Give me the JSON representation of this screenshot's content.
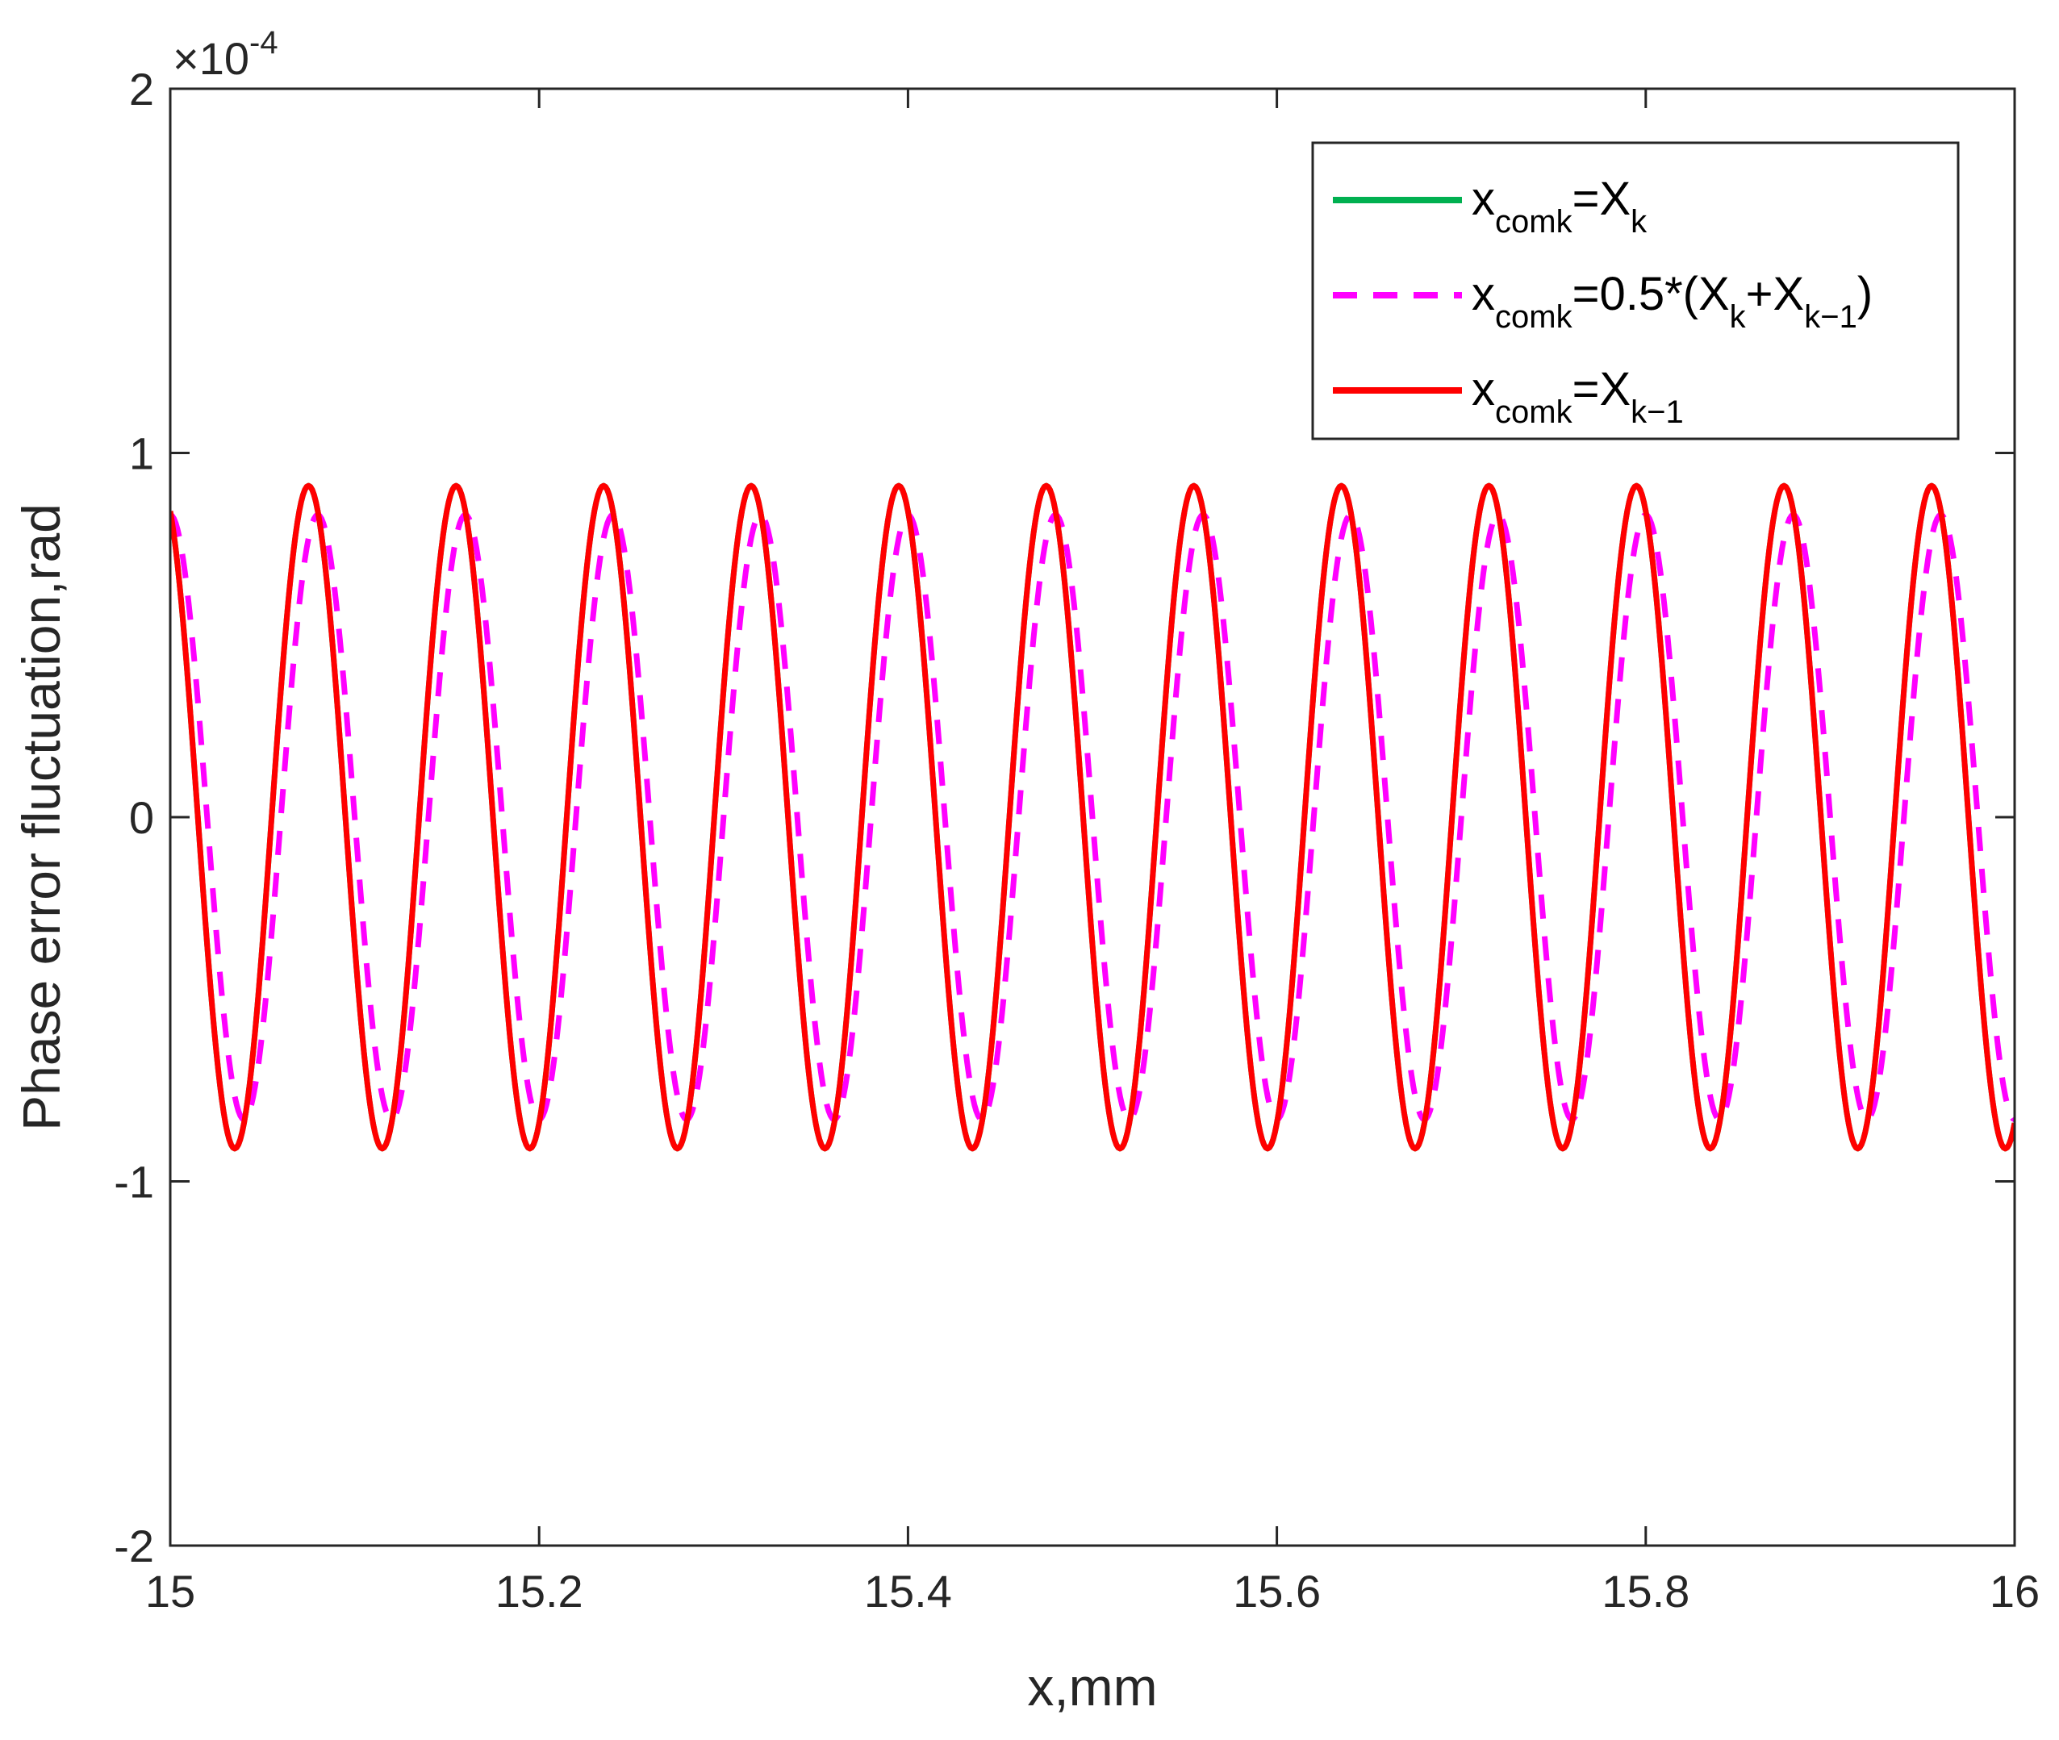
{
  "chart_data": {
    "type": "line",
    "title": "",
    "xlabel": "x,mm",
    "ylabel": "Phase error fluctuation,rad",
    "xlim": [
      15,
      16
    ],
    "ylim": [
      -2,
      2
    ],
    "y_scale_exponent": {
      "base": "×10",
      "exp": "-4"
    },
    "x_ticks": [
      15,
      15.2,
      15.4,
      15.6,
      15.8,
      16
    ],
    "x_tick_labels": [
      "15",
      "15.2",
      "15.4",
      "15.6",
      "15.8",
      "16"
    ],
    "y_ticks": [
      -2,
      -1,
      0,
      1,
      2
    ],
    "y_tick_labels": [
      "-2",
      "-1",
      "0",
      "1",
      "2"
    ],
    "grid": false,
    "legend_position": "top-right",
    "x_step": 0.001,
    "series": [
      {
        "legend": [
          [
            "x",
            ""
          ],
          [
            "comk",
            "sub"
          ],
          [
            "=X",
            ""
          ],
          [
            "k",
            "sub"
          ]
        ],
        "color": "#00b050",
        "dash": "solid",
        "amplitude": 0.91,
        "period": 0.08,
        "value_at_x15": 0.84,
        "peak_x": [
          15.005,
          15.085,
          15.165,
          15.245,
          15.325,
          15.405,
          15.485,
          15.565,
          15.645,
          15.725,
          15.805,
          15.885,
          15.965
        ],
        "trough_x": [
          15.045,
          15.125,
          15.205,
          15.285,
          15.365,
          15.445,
          15.525,
          15.605,
          15.685,
          15.765,
          15.845,
          15.925,
          16.0
        ]
      },
      {
        "legend": [
          [
            "x",
            ""
          ],
          [
            "comk",
            "sub"
          ],
          [
            "=0.5*(X",
            ""
          ],
          [
            "k",
            "sub"
          ],
          [
            "+X",
            ""
          ],
          [
            "k−1",
            "sub"
          ],
          [
            ")",
            ""
          ]
        ],
        "color": "#ff00ff",
        "dash": "dashed",
        "amplitude": 0.83,
        "period": 0.08,
        "value_at_x15": 0.83,
        "peak_x": [
          15.0,
          15.08,
          15.16,
          15.24,
          15.32,
          15.4,
          15.48,
          15.56,
          15.64,
          15.72,
          15.8,
          15.88,
          15.96
        ],
        "trough_x": [
          15.04,
          15.12,
          15.2,
          15.28,
          15.36,
          15.44,
          15.52,
          15.6,
          15.68,
          15.76,
          15.84,
          15.92,
          16.0
        ]
      },
      {
        "legend": [
          [
            "x",
            ""
          ],
          [
            "comk",
            "sub"
          ],
          [
            "=X",
            ""
          ],
          [
            "k−1",
            "sub"
          ]
        ],
        "color": "#ff0000",
        "dash": "solid",
        "amplitude": 0.91,
        "period": 0.08,
        "value_at_x15": 0.84,
        "peak_x": [
          15.075,
          15.155,
          15.235,
          15.315,
          15.395,
          15.475,
          15.555,
          15.635,
          15.715,
          15.795,
          15.875,
          15.955
        ],
        "trough_x": [
          15.035,
          15.115,
          15.195,
          15.275,
          15.355,
          15.435,
          15.515,
          15.595,
          15.675,
          15.755,
          15.835,
          15.915,
          15.995
        ]
      }
    ]
  }
}
